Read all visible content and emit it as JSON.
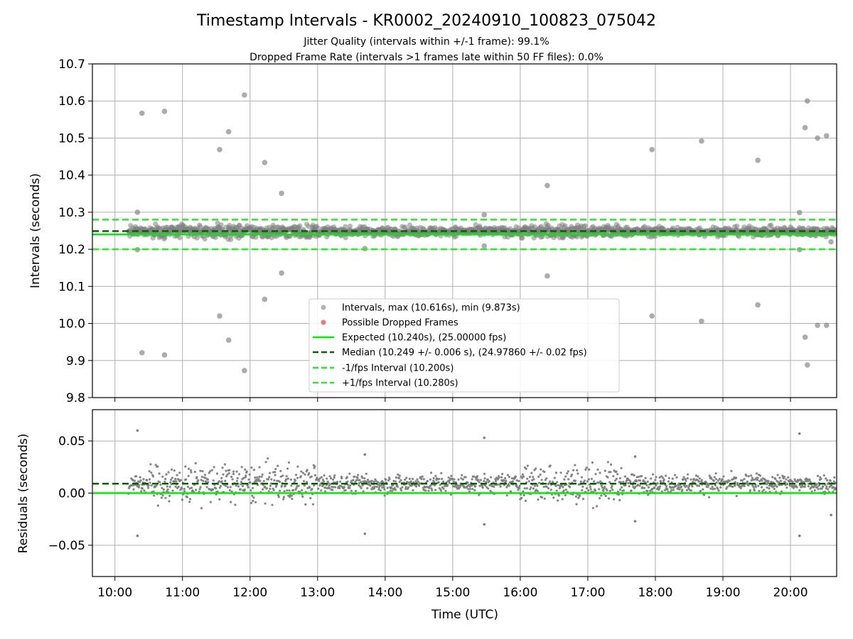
{
  "figure": {
    "title": "Timestamp Intervals - KR0002_20240910_100823_075042",
    "subtitle_1": "Jitter Quality (intervals within +/-1 frame): 99.1%",
    "subtitle_2": "Dropped Frame Rate (intervals >1 frames late within 50 FF files): 0.0%"
  },
  "colors": {
    "points": "#808080",
    "dropped": "#ff4d4d",
    "expected": "#00ee00",
    "median": "#006400",
    "interval": "#22ee22",
    "grid": "#b0b0b0"
  },
  "chart_data": [
    {
      "type": "scatter",
      "name": "intervals-panel",
      "ylabel": "Intervals (seconds)",
      "xlabel": "",
      "ylim": [
        9.8,
        10.7
      ],
      "yticks": [
        "9.8",
        "9.9",
        "10.0",
        "10.1",
        "10.2",
        "10.3",
        "10.4",
        "10.5",
        "10.6",
        "10.7"
      ],
      "xlim": [
        "09:40",
        "20:41"
      ],
      "grid": true,
      "legend_position": "lower-center",
      "band_note": "dense band of points between ~10.22 and ~10.27 s from 10:12 to 20:41",
      "outliers": [
        {
          "x": "10:20",
          "y": 10.3
        },
        {
          "x": "10:24",
          "y": 10.567
        },
        {
          "x": "10:44",
          "y": 10.572
        },
        {
          "x": "11:33",
          "y": 10.469
        },
        {
          "x": "11:41",
          "y": 10.517
        },
        {
          "x": "11:55",
          "y": 10.616
        },
        {
          "x": "12:13",
          "y": 10.434
        },
        {
          "x": "12:28",
          "y": 10.351
        },
        {
          "x": "15:28",
          "y": 10.293
        },
        {
          "x": "16:24",
          "y": 10.372
        },
        {
          "x": "17:57",
          "y": 10.469
        },
        {
          "x": "18:41",
          "y": 10.492
        },
        {
          "x": "19:31",
          "y": 10.44
        },
        {
          "x": "20:08",
          "y": 10.299
        },
        {
          "x": "20:13",
          "y": 10.528
        },
        {
          "x": "20:15",
          "y": 10.6
        },
        {
          "x": "20:24",
          "y": 10.5
        },
        {
          "x": "20:32",
          "y": 10.506
        },
        {
          "x": "10:20",
          "y": 10.199
        },
        {
          "x": "10:24",
          "y": 9.921
        },
        {
          "x": "10:44",
          "y": 9.915
        },
        {
          "x": "11:33",
          "y": 10.02
        },
        {
          "x": "11:41",
          "y": 9.955
        },
        {
          "x": "11:55",
          "y": 9.873
        },
        {
          "x": "12:13",
          "y": 10.065
        },
        {
          "x": "12:28",
          "y": 10.136
        },
        {
          "x": "13:42",
          "y": 10.202
        },
        {
          "x": "15:28",
          "y": 10.209
        },
        {
          "x": "16:24",
          "y": 10.128
        },
        {
          "x": "17:57",
          "y": 10.02
        },
        {
          "x": "18:41",
          "y": 10.006
        },
        {
          "x": "19:31",
          "y": 10.05
        },
        {
          "x": "20:08",
          "y": 10.199
        },
        {
          "x": "20:13",
          "y": 9.963
        },
        {
          "x": "20:15",
          "y": 9.888
        },
        {
          "x": "20:24",
          "y": 9.995
        },
        {
          "x": "20:32",
          "y": 9.995
        },
        {
          "x": "20:36",
          "y": 10.22
        }
      ],
      "lines": [
        {
          "name": "Expected (10.240s), (25.00000 fps)",
          "y": 10.24,
          "style": "solid"
        },
        {
          "name": "Median (10.249 +/- 0.006 s), (24.97860 +/- 0.02 fps)",
          "y": 10.249,
          "style": "dashed"
        },
        {
          "name": "-1/fps Interval (10.200s)",
          "y": 10.2,
          "style": "dashed"
        },
        {
          "name": "+1/fps Interval (10.280s)",
          "y": 10.28,
          "style": "dashed"
        }
      ],
      "legend": [
        "Intervals, max (10.616s), min (9.873s)",
        "Possible Dropped Frames",
        "Expected (10.240s), (25.00000 fps)",
        "Median (10.249 +/- 0.006 s), (24.97860 +/- 0.02 fps)",
        "-1/fps Interval (10.200s)",
        "+1/fps Interval (10.280s)"
      ]
    },
    {
      "type": "scatter",
      "name": "residuals-panel",
      "ylabel": "Residuals (seconds)",
      "xlabel": "Time (UTC)",
      "ylim": [
        -0.08,
        0.08
      ],
      "yticks": [
        "−0.05",
        "0.00",
        "0.05"
      ],
      "ytick_values": [
        -0.05,
        0.0,
        0.05
      ],
      "xlim": [
        "09:40",
        "20:41"
      ],
      "xticks": [
        "10:00",
        "11:00",
        "12:00",
        "13:00",
        "14:00",
        "15:00",
        "16:00",
        "17:00",
        "18:00",
        "19:00",
        "20:00"
      ],
      "grid": true,
      "band_note": "residuals mostly between -0.02 and 0.035 s; wider spread 10:30-13:00 and 16:00-17:30",
      "outliers": [
        {
          "x": "10:20",
          "y": 0.06
        },
        {
          "x": "10:20",
          "y": -0.041
        },
        {
          "x": "13:42",
          "y": 0.037
        },
        {
          "x": "13:42",
          "y": -0.039
        },
        {
          "x": "15:28",
          "y": 0.053
        },
        {
          "x": "15:28",
          "y": -0.03
        },
        {
          "x": "17:42",
          "y": 0.035
        },
        {
          "x": "17:42",
          "y": -0.027
        },
        {
          "x": "20:08",
          "y": 0.057
        },
        {
          "x": "20:08",
          "y": -0.041
        },
        {
          "x": "20:36",
          "y": -0.021
        }
      ],
      "lines": [
        {
          "name": "expected-zero",
          "y": 0.0,
          "style": "solid"
        },
        {
          "name": "median-offset",
          "y": 0.009,
          "style": "dashed"
        }
      ]
    }
  ]
}
